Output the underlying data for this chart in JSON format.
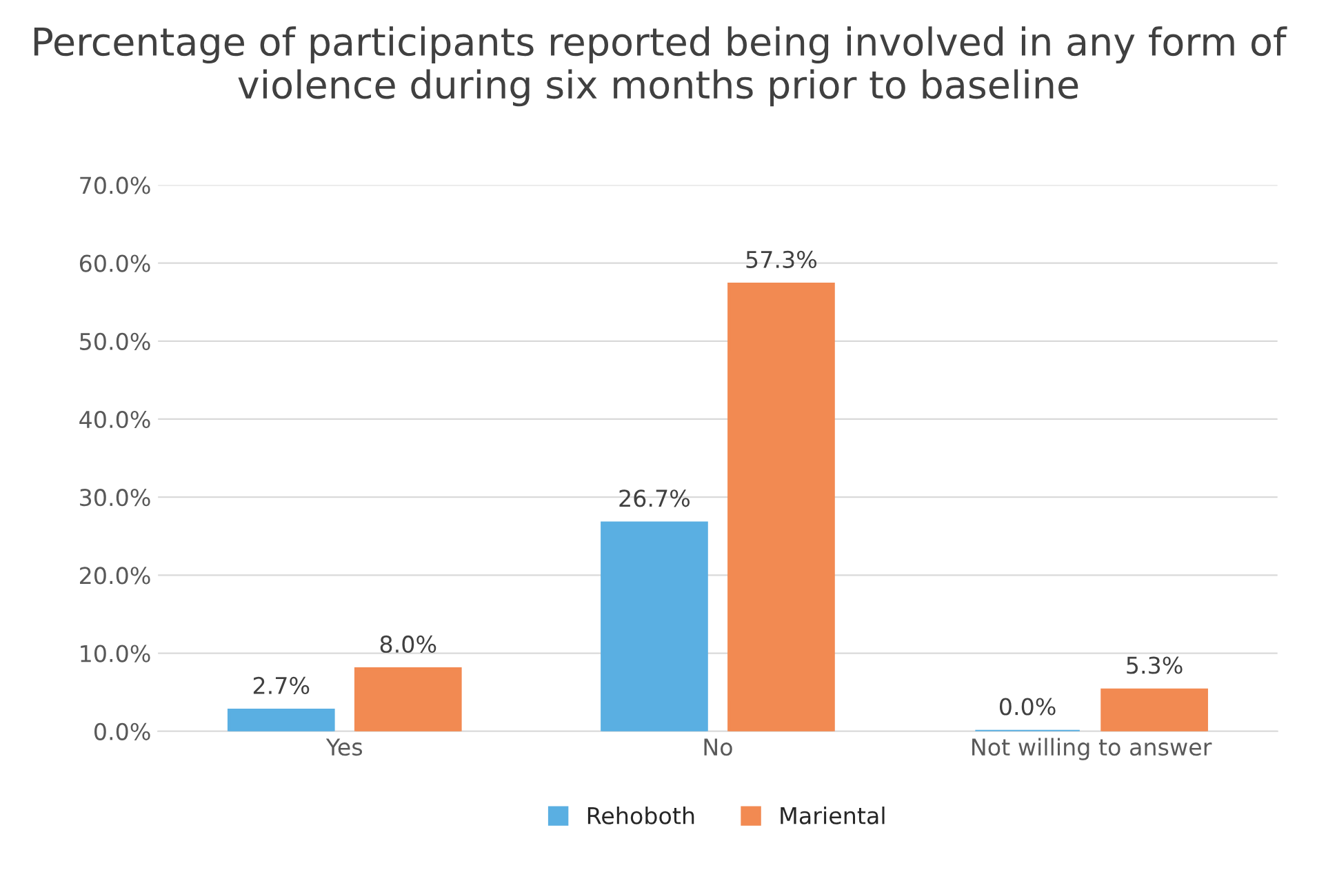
{
  "chart_data": {
    "type": "bar",
    "title": "Percentage of participants reported being involved in any form of violence during six months prior to baseline",
    "categories": [
      "Yes",
      "No",
      "Not willing to answer"
    ],
    "series": [
      {
        "name": "Rehoboth",
        "color": "#5aafe2",
        "values": [
          2.7,
          26.7,
          0.0
        ],
        "value_labels": [
          "2.7%",
          "26.7%",
          "0.0%"
        ]
      },
      {
        "name": "Mariental",
        "color": "#f28a52",
        "values": [
          8.0,
          57.3,
          5.3
        ],
        "value_labels": [
          "8.0%",
          "57.3%",
          "5.3%"
        ]
      }
    ],
    "ylim": [
      0,
      70
    ],
    "yticks": [
      {
        "value": 0,
        "label": "0.0%"
      },
      {
        "value": 10,
        "label": "10.0%"
      },
      {
        "value": 20,
        "label": "20.0%"
      },
      {
        "value": 30,
        "label": "30.0%"
      },
      {
        "value": 40,
        "label": "40.0%"
      },
      {
        "value": 50,
        "label": "50.0%"
      },
      {
        "value": 60,
        "label": "60.0%"
      },
      {
        "value": 70,
        "label": "70.0%"
      }
    ],
    "grid": "y",
    "legend": "bottom"
  }
}
